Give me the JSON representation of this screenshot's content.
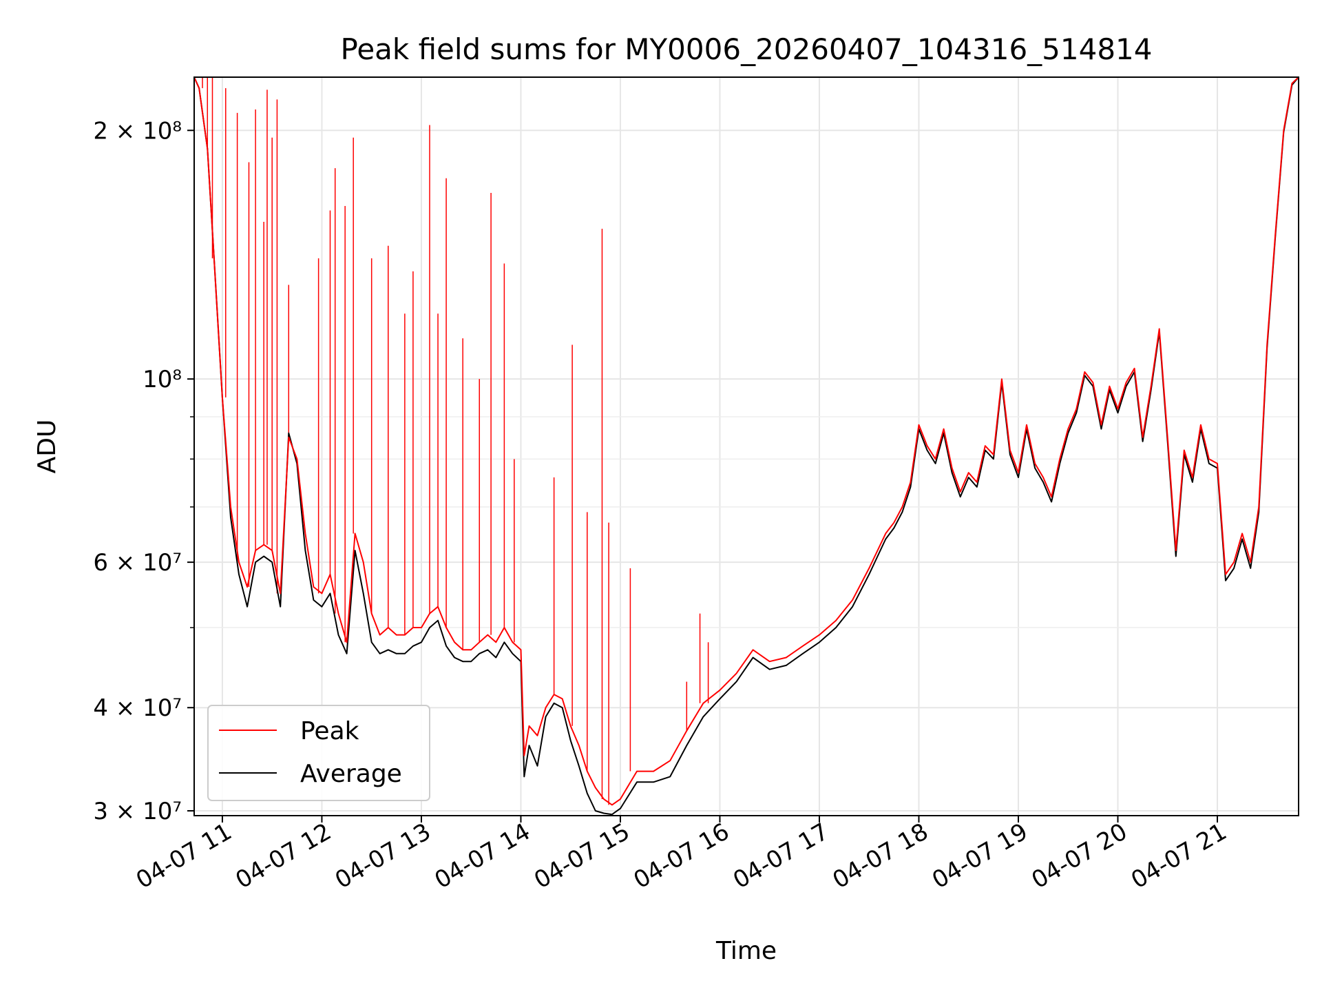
{
  "chart_data": {
    "type": "line",
    "title": "Peak field sums for MY0006_20260407_104316_514814",
    "xlabel": "Time",
    "ylabel": "ADU",
    "yscale": "log",
    "xlim": [
      "2026-04-07 10:43",
      "2026-04-07 21:49"
    ],
    "ylim": [
      29600000,
      232000000
    ],
    "grid": true,
    "legend_position": "lower-left",
    "x_ticks": [
      {
        "value": "2026-04-07 11:00",
        "label": "04-07 11"
      },
      {
        "value": "2026-04-07 12:00",
        "label": "04-07 12"
      },
      {
        "value": "2026-04-07 13:00",
        "label": "04-07 13"
      },
      {
        "value": "2026-04-07 14:00",
        "label": "04-07 14"
      },
      {
        "value": "2026-04-07 15:00",
        "label": "04-07 15"
      },
      {
        "value": "2026-04-07 16:00",
        "label": "04-07 16"
      },
      {
        "value": "2026-04-07 17:00",
        "label": "04-07 17"
      },
      {
        "value": "2026-04-07 18:00",
        "label": "04-07 18"
      },
      {
        "value": "2026-04-07 19:00",
        "label": "04-07 19"
      },
      {
        "value": "2026-04-07 20:00",
        "label": "04-07 20"
      },
      {
        "value": "2026-04-07 21:00",
        "label": "04-07 21"
      }
    ],
    "y_major_ticks": [
      {
        "value": 30000000,
        "label": "3 × 10⁷"
      },
      {
        "value": 40000000,
        "label": "4 × 10⁷"
      },
      {
        "value": 60000000,
        "label": "6 × 10⁷"
      },
      {
        "value": 100000000,
        "label": "10⁸"
      },
      {
        "value": 200000000,
        "label": "2 × 10⁸"
      }
    ],
    "y_minor_ticks": [
      50000000,
      70000000,
      80000000,
      90000000
    ],
    "series": [
      {
        "name": "Peak",
        "color": "#ff0000",
        "x": [
          "2026-04-07 10:43",
          "2026-04-07 10:46",
          "2026-04-07 10:51",
          "2026-04-07 10:55",
          "2026-04-07 11:00",
          "2026-04-07 11:05",
          "2026-04-07 11:10",
          "2026-04-07 11:15",
          "2026-04-07 11:20",
          "2026-04-07 11:25",
          "2026-04-07 11:30",
          "2026-04-07 11:35",
          "2026-04-07 11:40",
          "2026-04-07 11:45",
          "2026-04-07 11:50",
          "2026-04-07 11:55",
          "2026-04-07 12:00",
          "2026-04-07 12:05",
          "2026-04-07 12:10",
          "2026-04-07 12:15",
          "2026-04-07 12:20",
          "2026-04-07 12:25",
          "2026-04-07 12:30",
          "2026-04-07 12:35",
          "2026-04-07 12:40",
          "2026-04-07 12:45",
          "2026-04-07 12:50",
          "2026-04-07 12:55",
          "2026-04-07 13:00",
          "2026-04-07 13:05",
          "2026-04-07 13:10",
          "2026-04-07 13:15",
          "2026-04-07 13:20",
          "2026-04-07 13:25",
          "2026-04-07 13:30",
          "2026-04-07 13:35",
          "2026-04-07 13:40",
          "2026-04-07 13:45",
          "2026-04-07 13:50",
          "2026-04-07 13:55",
          "2026-04-07 14:00",
          "2026-04-07 14:02",
          "2026-04-07 14:05",
          "2026-04-07 14:10",
          "2026-04-07 14:15",
          "2026-04-07 14:20",
          "2026-04-07 14:25",
          "2026-04-07 14:30",
          "2026-04-07 14:35",
          "2026-04-07 14:40",
          "2026-04-07 14:45",
          "2026-04-07 14:50",
          "2026-04-07 14:55",
          "2026-04-07 15:00",
          "2026-04-07 15:10",
          "2026-04-07 15:20",
          "2026-04-07 15:30",
          "2026-04-07 15:40",
          "2026-04-07 15:50",
          "2026-04-07 16:00",
          "2026-04-07 16:10",
          "2026-04-07 16:20",
          "2026-04-07 16:30",
          "2026-04-07 16:40",
          "2026-04-07 16:50",
          "2026-04-07 17:00",
          "2026-04-07 17:10",
          "2026-04-07 17:20",
          "2026-04-07 17:30",
          "2026-04-07 17:40",
          "2026-04-07 17:45",
          "2026-04-07 17:50",
          "2026-04-07 17:55",
          "2026-04-07 18:00",
          "2026-04-07 18:05",
          "2026-04-07 18:10",
          "2026-04-07 18:15",
          "2026-04-07 18:20",
          "2026-04-07 18:25",
          "2026-04-07 18:30",
          "2026-04-07 18:35",
          "2026-04-07 18:40",
          "2026-04-07 18:45",
          "2026-04-07 18:50",
          "2026-04-07 18:55",
          "2026-04-07 19:00",
          "2026-04-07 19:05",
          "2026-04-07 19:10",
          "2026-04-07 19:15",
          "2026-04-07 19:20",
          "2026-04-07 19:25",
          "2026-04-07 19:30",
          "2026-04-07 19:35",
          "2026-04-07 19:40",
          "2026-04-07 19:45",
          "2026-04-07 19:50",
          "2026-04-07 19:55",
          "2026-04-07 20:00",
          "2026-04-07 20:05",
          "2026-04-07 20:10",
          "2026-04-07 20:15",
          "2026-04-07 20:20",
          "2026-04-07 20:25",
          "2026-04-07 20:30",
          "2026-04-07 20:35",
          "2026-04-07 20:40",
          "2026-04-07 20:45",
          "2026-04-07 20:50",
          "2026-04-07 20:55",
          "2026-04-07 21:00",
          "2026-04-07 21:05",
          "2026-04-07 21:10",
          "2026-04-07 21:15",
          "2026-04-07 21:20",
          "2026-04-07 21:25",
          "2026-04-07 21:30",
          "2026-04-07 21:35",
          "2026-04-07 21:40",
          "2026-04-07 21:45",
          "2026-04-07 21:49"
        ],
        "values": [
          232000000,
          225000000,
          190000000,
          140000000,
          95000000,
          70000000,
          60000000,
          56000000,
          62000000,
          63000000,
          62000000,
          55000000,
          85000000,
          80000000,
          65000000,
          56000000,
          55000000,
          58000000,
          52000000,
          48000000,
          65000000,
          60000000,
          52000000,
          49000000,
          50000000,
          49000000,
          49000000,
          50000000,
          50000000,
          52000000,
          53000000,
          50000000,
          48000000,
          47000000,
          47000000,
          48000000,
          49000000,
          48000000,
          50000000,
          48000000,
          47000000,
          35000000,
          38000000,
          37000000,
          40000000,
          41500000,
          41000000,
          38000000,
          36000000,
          33500000,
          32000000,
          31000000,
          30500000,
          31000000,
          33500000,
          33500000,
          34500000,
          37500000,
          40500000,
          42000000,
          44000000,
          47000000,
          45500000,
          46000000,
          47500000,
          49000000,
          51000000,
          54000000,
          59000000,
          65000000,
          67000000,
          70000000,
          75000000,
          88000000,
          83000000,
          80000000,
          87000000,
          78000000,
          73000000,
          77000000,
          75000000,
          83000000,
          81000000,
          100000000,
          82000000,
          77000000,
          88000000,
          79000000,
          76000000,
          72000000,
          80000000,
          87000000,
          92000000,
          102000000,
          99000000,
          88000000,
          98000000,
          92000000,
          99000000,
          103000000,
          85000000,
          98000000,
          115000000,
          85000000,
          62000000,
          82000000,
          76000000,
          88000000,
          80000000,
          79000000,
          58000000,
          60000000,
          65000000,
          60000000,
          70000000,
          110000000,
          150000000,
          200000000,
          228000000,
          232000000
        ],
        "spikes": [
          {
            "x": "2026-04-07 10:48",
            "value": 232000000
          },
          {
            "x": "2026-04-07 10:51",
            "value": 232000000
          },
          {
            "x": "2026-04-07 10:54",
            "value": 232000000
          },
          {
            "x": "2026-04-07 11:02",
            "value": 225000000
          },
          {
            "x": "2026-04-07 11:09",
            "value": 210000000
          },
          {
            "x": "2026-04-07 11:16",
            "value": 183000000
          },
          {
            "x": "2026-04-07 11:20",
            "value": 212000000
          },
          {
            "x": "2026-04-07 11:25",
            "value": 155000000
          },
          {
            "x": "2026-04-07 11:27",
            "value": 224000000
          },
          {
            "x": "2026-04-07 11:30",
            "value": 196000000
          },
          {
            "x": "2026-04-07 11:33",
            "value": 218000000
          },
          {
            "x": "2026-04-07 11:40",
            "value": 130000000
          },
          {
            "x": "2026-04-07 11:58",
            "value": 140000000
          },
          {
            "x": "2026-04-07 12:05",
            "value": 160000000
          },
          {
            "x": "2026-04-07 12:08",
            "value": 180000000
          },
          {
            "x": "2026-04-07 12:14",
            "value": 162000000
          },
          {
            "x": "2026-04-07 12:19",
            "value": 196000000
          },
          {
            "x": "2026-04-07 12:30",
            "value": 140000000
          },
          {
            "x": "2026-04-07 12:40",
            "value": 145000000
          },
          {
            "x": "2026-04-07 12:50",
            "value": 120000000
          },
          {
            "x": "2026-04-07 12:55",
            "value": 135000000
          },
          {
            "x": "2026-04-07 13:05",
            "value": 203000000
          },
          {
            "x": "2026-04-07 13:10",
            "value": 120000000
          },
          {
            "x": "2026-04-07 13:15",
            "value": 175000000
          },
          {
            "x": "2026-04-07 13:25",
            "value": 112000000
          },
          {
            "x": "2026-04-07 13:35",
            "value": 100000000
          },
          {
            "x": "2026-04-07 13:42",
            "value": 168000000
          },
          {
            "x": "2026-04-07 13:50",
            "value": 138000000
          },
          {
            "x": "2026-04-07 13:56",
            "value": 80000000
          },
          {
            "x": "2026-04-07 14:20",
            "value": 76000000
          },
          {
            "x": "2026-04-07 14:31",
            "value": 110000000
          },
          {
            "x": "2026-04-07 14:40",
            "value": 69000000
          },
          {
            "x": "2026-04-07 14:49",
            "value": 152000000
          },
          {
            "x": "2026-04-07 14:53",
            "value": 67000000
          },
          {
            "x": "2026-04-07 15:06",
            "value": 59000000
          },
          {
            "x": "2026-04-07 15:40",
            "value": 43000000
          },
          {
            "x": "2026-04-07 15:48",
            "value": 52000000
          },
          {
            "x": "2026-04-07 15:53",
            "value": 48000000
          }
        ]
      },
      {
        "name": "Average",
        "color": "#000000",
        "x": [
          "2026-04-07 10:43",
          "2026-04-07 10:46",
          "2026-04-07 10:51",
          "2026-04-07 10:55",
          "2026-04-07 11:00",
          "2026-04-07 11:05",
          "2026-04-07 11:10",
          "2026-04-07 11:15",
          "2026-04-07 11:20",
          "2026-04-07 11:25",
          "2026-04-07 11:30",
          "2026-04-07 11:35",
          "2026-04-07 11:40",
          "2026-04-07 11:45",
          "2026-04-07 11:50",
          "2026-04-07 11:55",
          "2026-04-07 12:00",
          "2026-04-07 12:05",
          "2026-04-07 12:10",
          "2026-04-07 12:15",
          "2026-04-07 12:20",
          "2026-04-07 12:25",
          "2026-04-07 12:30",
          "2026-04-07 12:35",
          "2026-04-07 12:40",
          "2026-04-07 12:45",
          "2026-04-07 12:50",
          "2026-04-07 12:55",
          "2026-04-07 13:00",
          "2026-04-07 13:05",
          "2026-04-07 13:10",
          "2026-04-07 13:15",
          "2026-04-07 13:20",
          "2026-04-07 13:25",
          "2026-04-07 13:30",
          "2026-04-07 13:35",
          "2026-04-07 13:40",
          "2026-04-07 13:45",
          "2026-04-07 13:50",
          "2026-04-07 13:55",
          "2026-04-07 14:00",
          "2026-04-07 14:02",
          "2026-04-07 14:05",
          "2026-04-07 14:10",
          "2026-04-07 14:15",
          "2026-04-07 14:20",
          "2026-04-07 14:25",
          "2026-04-07 14:30",
          "2026-04-07 14:35",
          "2026-04-07 14:40",
          "2026-04-07 14:45",
          "2026-04-07 14:50",
          "2026-04-07 14:55",
          "2026-04-07 15:00",
          "2026-04-07 15:10",
          "2026-04-07 15:20",
          "2026-04-07 15:30",
          "2026-04-07 15:40",
          "2026-04-07 15:50",
          "2026-04-07 16:00",
          "2026-04-07 16:10",
          "2026-04-07 16:20",
          "2026-04-07 16:30",
          "2026-04-07 16:40",
          "2026-04-07 16:50",
          "2026-04-07 17:00",
          "2026-04-07 17:10",
          "2026-04-07 17:20",
          "2026-04-07 17:30",
          "2026-04-07 17:40",
          "2026-04-07 17:45",
          "2026-04-07 17:50",
          "2026-04-07 17:55",
          "2026-04-07 18:00",
          "2026-04-07 18:05",
          "2026-04-07 18:10",
          "2026-04-07 18:15",
          "2026-04-07 18:20",
          "2026-04-07 18:25",
          "2026-04-07 18:30",
          "2026-04-07 18:35",
          "2026-04-07 18:40",
          "2026-04-07 18:45",
          "2026-04-07 18:50",
          "2026-04-07 18:55",
          "2026-04-07 19:00",
          "2026-04-07 19:05",
          "2026-04-07 19:10",
          "2026-04-07 19:15",
          "2026-04-07 19:20",
          "2026-04-07 19:25",
          "2026-04-07 19:30",
          "2026-04-07 19:35",
          "2026-04-07 19:40",
          "2026-04-07 19:45",
          "2026-04-07 19:50",
          "2026-04-07 19:55",
          "2026-04-07 20:00",
          "2026-04-07 20:05",
          "2026-04-07 20:10",
          "2026-04-07 20:15",
          "2026-04-07 20:20",
          "2026-04-07 20:25",
          "2026-04-07 20:30",
          "2026-04-07 20:35",
          "2026-04-07 20:40",
          "2026-04-07 20:45",
          "2026-04-07 20:50",
          "2026-04-07 20:55",
          "2026-04-07 21:00",
          "2026-04-07 21:05",
          "2026-04-07 21:10",
          "2026-04-07 21:15",
          "2026-04-07 21:20",
          "2026-04-07 21:25",
          "2026-04-07 21:30",
          "2026-04-07 21:35",
          "2026-04-07 21:40",
          "2026-04-07 21:45",
          "2026-04-07 21:49"
        ],
        "values": [
          232000000,
          225000000,
          190000000,
          140000000,
          95000000,
          68000000,
          58000000,
          53000000,
          60000000,
          61000000,
          60000000,
          53000000,
          86000000,
          79000000,
          62000000,
          54000000,
          53000000,
          55000000,
          49000000,
          46500000,
          62000000,
          55000000,
          48000000,
          46500000,
          47000000,
          46500000,
          46500000,
          47500000,
          48000000,
          50000000,
          51000000,
          47500000,
          46000000,
          45500000,
          45500000,
          46500000,
          47000000,
          46000000,
          48000000,
          46500000,
          45500000,
          33000000,
          36000000,
          34000000,
          39000000,
          40500000,
          40000000,
          36500000,
          34000000,
          31500000,
          30000000,
          29800000,
          29700000,
          30200000,
          32500000,
          32500000,
          33000000,
          36000000,
          39000000,
          41000000,
          43000000,
          46000000,
          44500000,
          45000000,
          46500000,
          48000000,
          50000000,
          53000000,
          58000000,
          64000000,
          66000000,
          69000000,
          74000000,
          87000000,
          82000000,
          79000000,
          86000000,
          77000000,
          72000000,
          76000000,
          74000000,
          82000000,
          80000000,
          99000000,
          81000000,
          76000000,
          87000000,
          78000000,
          75000000,
          71000000,
          79000000,
          86000000,
          91000000,
          101000000,
          98000000,
          87000000,
          97000000,
          91000000,
          98000000,
          102000000,
          84000000,
          97000000,
          114000000,
          84000000,
          61000000,
          81000000,
          75000000,
          87000000,
          79000000,
          78000000,
          57000000,
          59000000,
          64000000,
          59000000,
          69000000,
          109000000,
          149000000,
          199000000,
          227000000,
          232000000
        ]
      }
    ]
  }
}
